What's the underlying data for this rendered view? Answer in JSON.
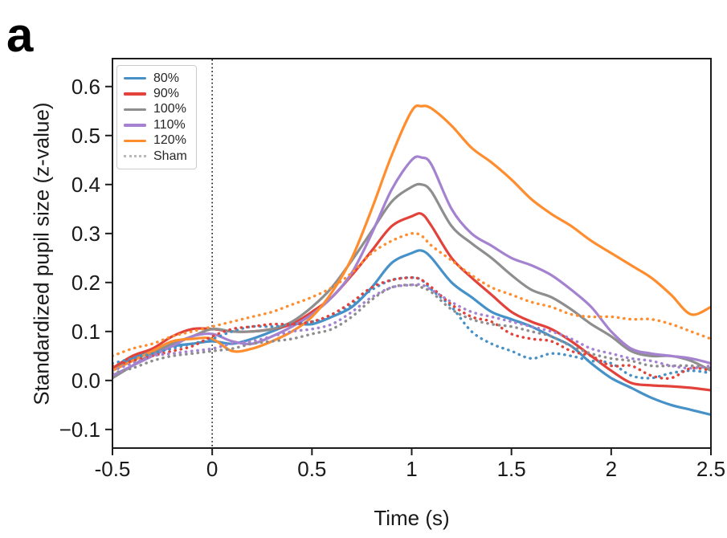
{
  "panel_label": "a",
  "chart_data": {
    "type": "line",
    "title": "",
    "xlabel": "Time (s)",
    "ylabel": "Standardized pupil size (z-value)",
    "xlim": [
      -0.5,
      2.5
    ],
    "ylim": [
      -0.138,
      0.657
    ],
    "grid": false,
    "legend_position": "upper left",
    "event_line_x": 0,
    "x_ticks": {
      "values": [
        -0.5,
        0,
        0.5,
        1,
        1.5,
        2,
        2.5
      ],
      "labels": [
        "-0.5",
        "0",
        "0.5",
        "1",
        "1.5",
        "2",
        "2.5"
      ]
    },
    "y_ticks": {
      "values": [
        0.6,
        0.5,
        0.4,
        0.3,
        0.2,
        0.1,
        0.0,
        -0.1
      ],
      "labels": [
        "0.6",
        "0.5",
        "0.4",
        "0.3",
        "0.2",
        "0.1",
        "0.0",
        "−0.1"
      ]
    },
    "x": [
      -0.5,
      -0.4,
      -0.3,
      -0.2,
      -0.1,
      0,
      0.1,
      0.2,
      0.3,
      0.4,
      0.5,
      0.6,
      0.7,
      0.8,
      0.9,
      1,
      1.05,
      1.1,
      1.2,
      1.3,
      1.4,
      1.5,
      1.6,
      1.7,
      1.8,
      1.9,
      2,
      2.1,
      2.2,
      2.3,
      2.4,
      2.5
    ],
    "series": [
      {
        "name": "80%",
        "style": "solid",
        "color": "#4691c8",
        "values": [
          0.02,
          0.045,
          0.06,
          0.07,
          0.075,
          0.08,
          0.075,
          0.085,
          0.1,
          0.115,
          0.115,
          0.13,
          0.15,
          0.19,
          0.24,
          0.26,
          0.265,
          0.25,
          0.2,
          0.17,
          0.14,
          0.125,
          0.11,
          0.09,
          0.07,
          0.035,
          0.005,
          -0.015,
          -0.035,
          -0.05,
          -0.06,
          -0.07
        ]
      },
      {
        "name": "90%",
        "style": "solid",
        "color": "#e2423a",
        "values": [
          0.025,
          0.05,
          0.065,
          0.09,
          0.105,
          0.105,
          0.1,
          0.1,
          0.105,
          0.115,
          0.14,
          0.17,
          0.215,
          0.265,
          0.315,
          0.335,
          0.34,
          0.315,
          0.25,
          0.21,
          0.175,
          0.14,
          0.12,
          0.105,
          0.08,
          0.05,
          0.02,
          -0.005,
          -0.01,
          -0.012,
          -0.015,
          -0.02
        ]
      },
      {
        "name": "100%",
        "style": "solid",
        "color": "#8e8e8e",
        "values": [
          0.005,
          0.03,
          0.055,
          0.075,
          0.09,
          0.105,
          0.1,
          0.1,
          0.105,
          0.12,
          0.15,
          0.19,
          0.245,
          0.305,
          0.365,
          0.395,
          0.4,
          0.385,
          0.315,
          0.28,
          0.25,
          0.215,
          0.185,
          0.17,
          0.145,
          0.115,
          0.09,
          0.06,
          0.05,
          0.05,
          0.04,
          0.02
        ]
      },
      {
        "name": "110%",
        "style": "solid",
        "color": "#a482cf",
        "values": [
          0.01,
          0.03,
          0.05,
          0.07,
          0.09,
          0.095,
          0.08,
          0.075,
          0.09,
          0.11,
          0.135,
          0.17,
          0.22,
          0.3,
          0.39,
          0.45,
          0.455,
          0.44,
          0.35,
          0.3,
          0.275,
          0.25,
          0.235,
          0.215,
          0.185,
          0.15,
          0.1,
          0.065,
          0.055,
          0.05,
          0.045,
          0.035
        ]
      },
      {
        "name": "120%",
        "style": "solid",
        "color": "#ff8d2e",
        "values": [
          0.02,
          0.04,
          0.06,
          0.08,
          0.085,
          0.085,
          0.06,
          0.065,
          0.08,
          0.1,
          0.13,
          0.18,
          0.25,
          0.35,
          0.46,
          0.55,
          0.56,
          0.555,
          0.52,
          0.475,
          0.445,
          0.41,
          0.37,
          0.34,
          0.315,
          0.285,
          0.26,
          0.235,
          0.21,
          0.175,
          0.135,
          0.15
        ]
      },
      {
        "name": "Sham (80%)",
        "style": "dotted",
        "color": "#4691c8",
        "values": [
          0.035,
          0.045,
          0.055,
          0.065,
          0.075,
          0.085,
          0.1,
          0.11,
          0.11,
          0.115,
          0.12,
          0.13,
          0.155,
          0.185,
          0.205,
          0.21,
          0.205,
          0.185,
          0.15,
          0.1,
          0.075,
          0.06,
          0.045,
          0.055,
          0.05,
          0.04,
          0.035,
          0.01,
          0.005,
          0.015,
          0.02,
          0.015
        ]
      },
      {
        "name": "Sham (90%)",
        "style": "dotted",
        "color": "#e2423a",
        "values": [
          0.03,
          0.04,
          0.05,
          0.06,
          0.07,
          0.09,
          0.105,
          0.11,
          0.115,
          0.115,
          0.12,
          0.135,
          0.16,
          0.19,
          0.205,
          0.21,
          0.205,
          0.19,
          0.155,
          0.13,
          0.12,
          0.095,
          0.085,
          0.08,
          0.06,
          0.05,
          0.03,
          0.03,
          0.01,
          0.005,
          0.025,
          0.02
        ]
      },
      {
        "name": "Sham (100%)",
        "style": "dotted",
        "color": "#8e8e8e",
        "values": [
          0.015,
          0.025,
          0.04,
          0.05,
          0.055,
          0.06,
          0.065,
          0.075,
          0.08,
          0.085,
          0.095,
          0.105,
          0.13,
          0.165,
          0.19,
          0.195,
          0.19,
          0.18,
          0.145,
          0.125,
          0.115,
          0.11,
          0.1,
          0.09,
          0.07,
          0.055,
          0.045,
          0.04,
          0.03,
          0.03,
          0.03,
          0.025
        ]
      },
      {
        "name": "Sham (110%)",
        "style": "dotted",
        "color": "#a482cf",
        "values": [
          0.02,
          0.035,
          0.05,
          0.055,
          0.06,
          0.065,
          0.075,
          0.08,
          0.09,
          0.1,
          0.105,
          0.115,
          0.14,
          0.17,
          0.19,
          0.195,
          0.195,
          0.185,
          0.16,
          0.14,
          0.13,
          0.12,
          0.11,
          0.1,
          0.085,
          0.065,
          0.055,
          0.045,
          0.04,
          0.03,
          0.025,
          0.03
        ]
      },
      {
        "name": "Sham (120%)",
        "style": "dotted",
        "color": "#ff8d2e",
        "values": [
          0.05,
          0.065,
          0.075,
          0.09,
          0.1,
          0.11,
          0.12,
          0.13,
          0.14,
          0.155,
          0.17,
          0.19,
          0.22,
          0.26,
          0.285,
          0.3,
          0.295,
          0.275,
          0.245,
          0.215,
          0.19,
          0.175,
          0.16,
          0.15,
          0.135,
          0.13,
          0.13,
          0.125,
          0.125,
          0.115,
          0.1,
          0.085
        ]
      }
    ],
    "legend": [
      {
        "label": "80%",
        "style": "solid",
        "color": "#4691c8"
      },
      {
        "label": "90%",
        "style": "solid",
        "color": "#e2423a"
      },
      {
        "label": "100%",
        "style": "solid",
        "color": "#8e8e8e"
      },
      {
        "label": "110%",
        "style": "solid",
        "color": "#a482cf"
      },
      {
        "label": "120%",
        "style": "solid",
        "color": "#ff8d2e"
      },
      {
        "label": "Sham",
        "style": "dotted",
        "color": "#b9b9b9"
      }
    ],
    "colors": {
      "spine": "#1c1c1c",
      "tick_label": "#1a1a1a",
      "event_line": "#1a1a1a"
    }
  }
}
